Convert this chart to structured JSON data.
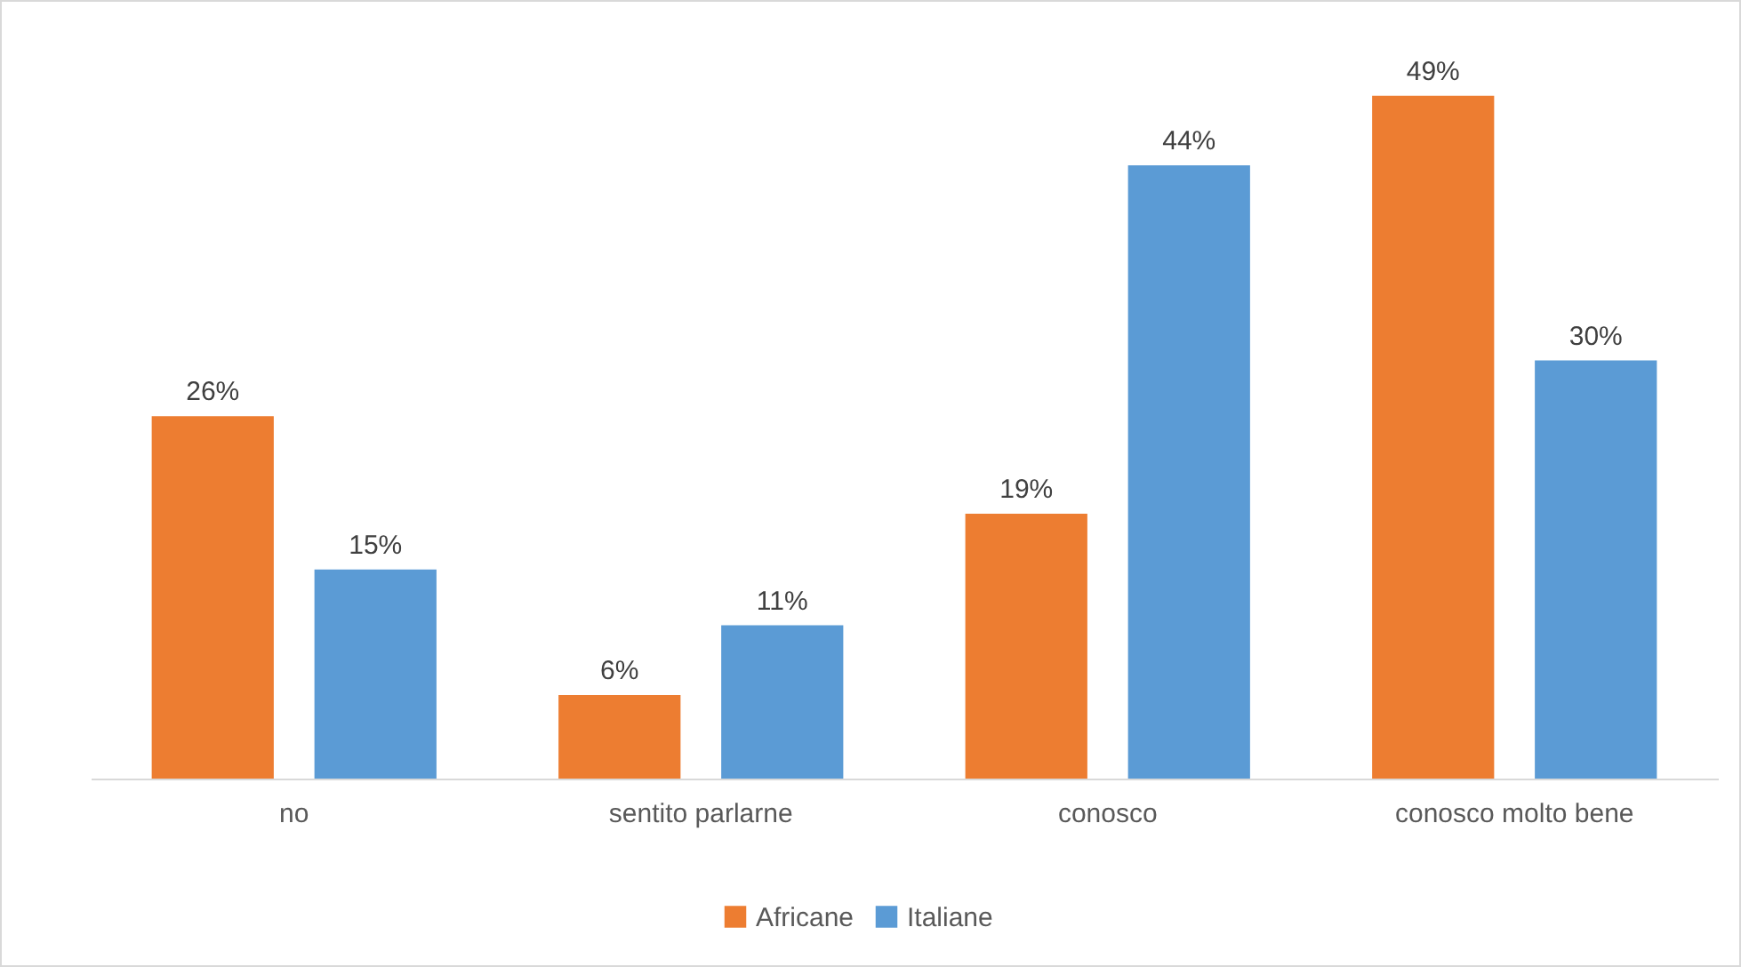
{
  "chart_data": {
    "type": "bar",
    "categories": [
      "no",
      "sentito parlarne",
      "conosco",
      "conosco molto bene"
    ],
    "series": [
      {
        "name": "Africane",
        "color": "#ed7d31",
        "values": [
          26,
          6,
          19,
          49
        ],
        "value_labels": [
          "26%",
          "6%",
          "19%",
          "49%"
        ]
      },
      {
        "name": "Italiane",
        "color": "#5b9bd5",
        "values": [
          15,
          11,
          44,
          30
        ],
        "value_labels": [
          "15%",
          "11%",
          "44%",
          "30%"
        ]
      }
    ],
    "legend": "bottom",
    "tick_labels": "x"
  }
}
